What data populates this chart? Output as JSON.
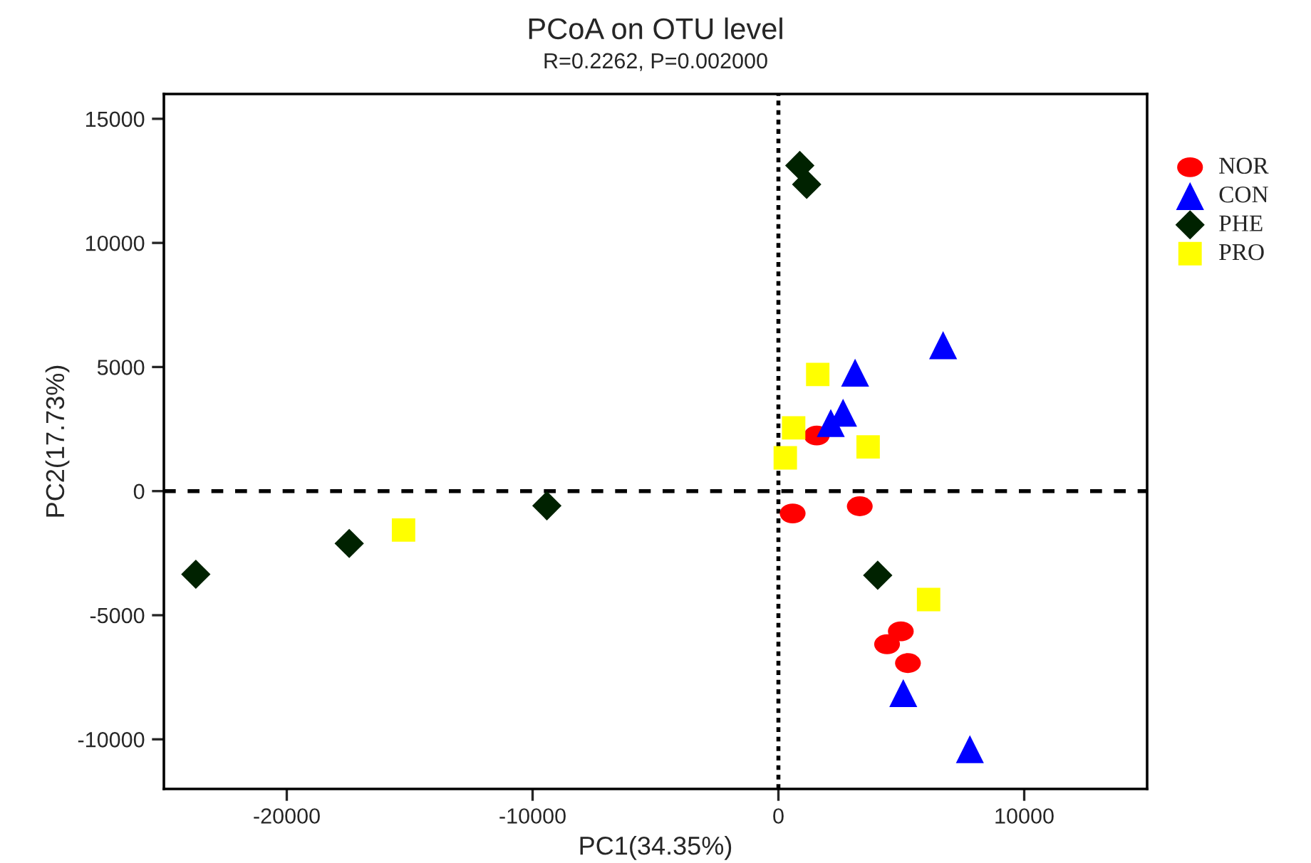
{
  "chart_data": {
    "type": "scatter",
    "title": "PCoA on OTU level",
    "subtitle": "R=0.2262, P=0.002000",
    "xlabel": "PC1(34.35%)",
    "ylabel": "PC2(17.73%)",
    "xlim": [
      -25000,
      15000
    ],
    "ylim": [
      -12000,
      16000
    ],
    "xticks": [
      -20000,
      -10000,
      0,
      10000
    ],
    "yticks": [
      -10000,
      -5000,
      0,
      5000,
      10000,
      15000
    ],
    "grid": false,
    "legend": "top right",
    "ref_lines": [
      {
        "axis": "x",
        "value": 0,
        "line_style": "dotted",
        "color": "#000000"
      },
      {
        "axis": "y",
        "value": 0,
        "line_style": "dashed",
        "color": "#000000"
      }
    ],
    "series": [
      {
        "name": "NOR",
        "color": "#ff0000",
        "marker": "circle",
        "x": [
          1560,
          580,
          3310,
          4980,
          4420,
          5270
        ],
        "values": [
          2240,
          -900,
          -610,
          -5650,
          -6170,
          -6930
        ]
      },
      {
        "name": "CON",
        "color": "#0000ff",
        "marker": "triangle",
        "x": [
          6700,
          3120,
          2630,
          2130,
          5080,
          7790
        ],
        "values": [
          5880,
          4770,
          3160,
          2740,
          -8140,
          -10400
        ]
      },
      {
        "name": "PHE",
        "color": "#002200",
        "marker": "diamond",
        "x": [
          870,
          1150,
          4040,
          -23700,
          -17460,
          -9420
        ],
        "values": [
          13120,
          12360,
          -3390,
          -3350,
          -2110,
          -590
        ]
      },
      {
        "name": "PRO",
        "color": "#ffff00",
        "marker": "square",
        "x": [
          1600,
          620,
          280,
          3650,
          6110,
          -15250
        ],
        "values": [
          4700,
          2550,
          1340,
          1780,
          -4370,
          -1570
        ]
      }
    ]
  }
}
